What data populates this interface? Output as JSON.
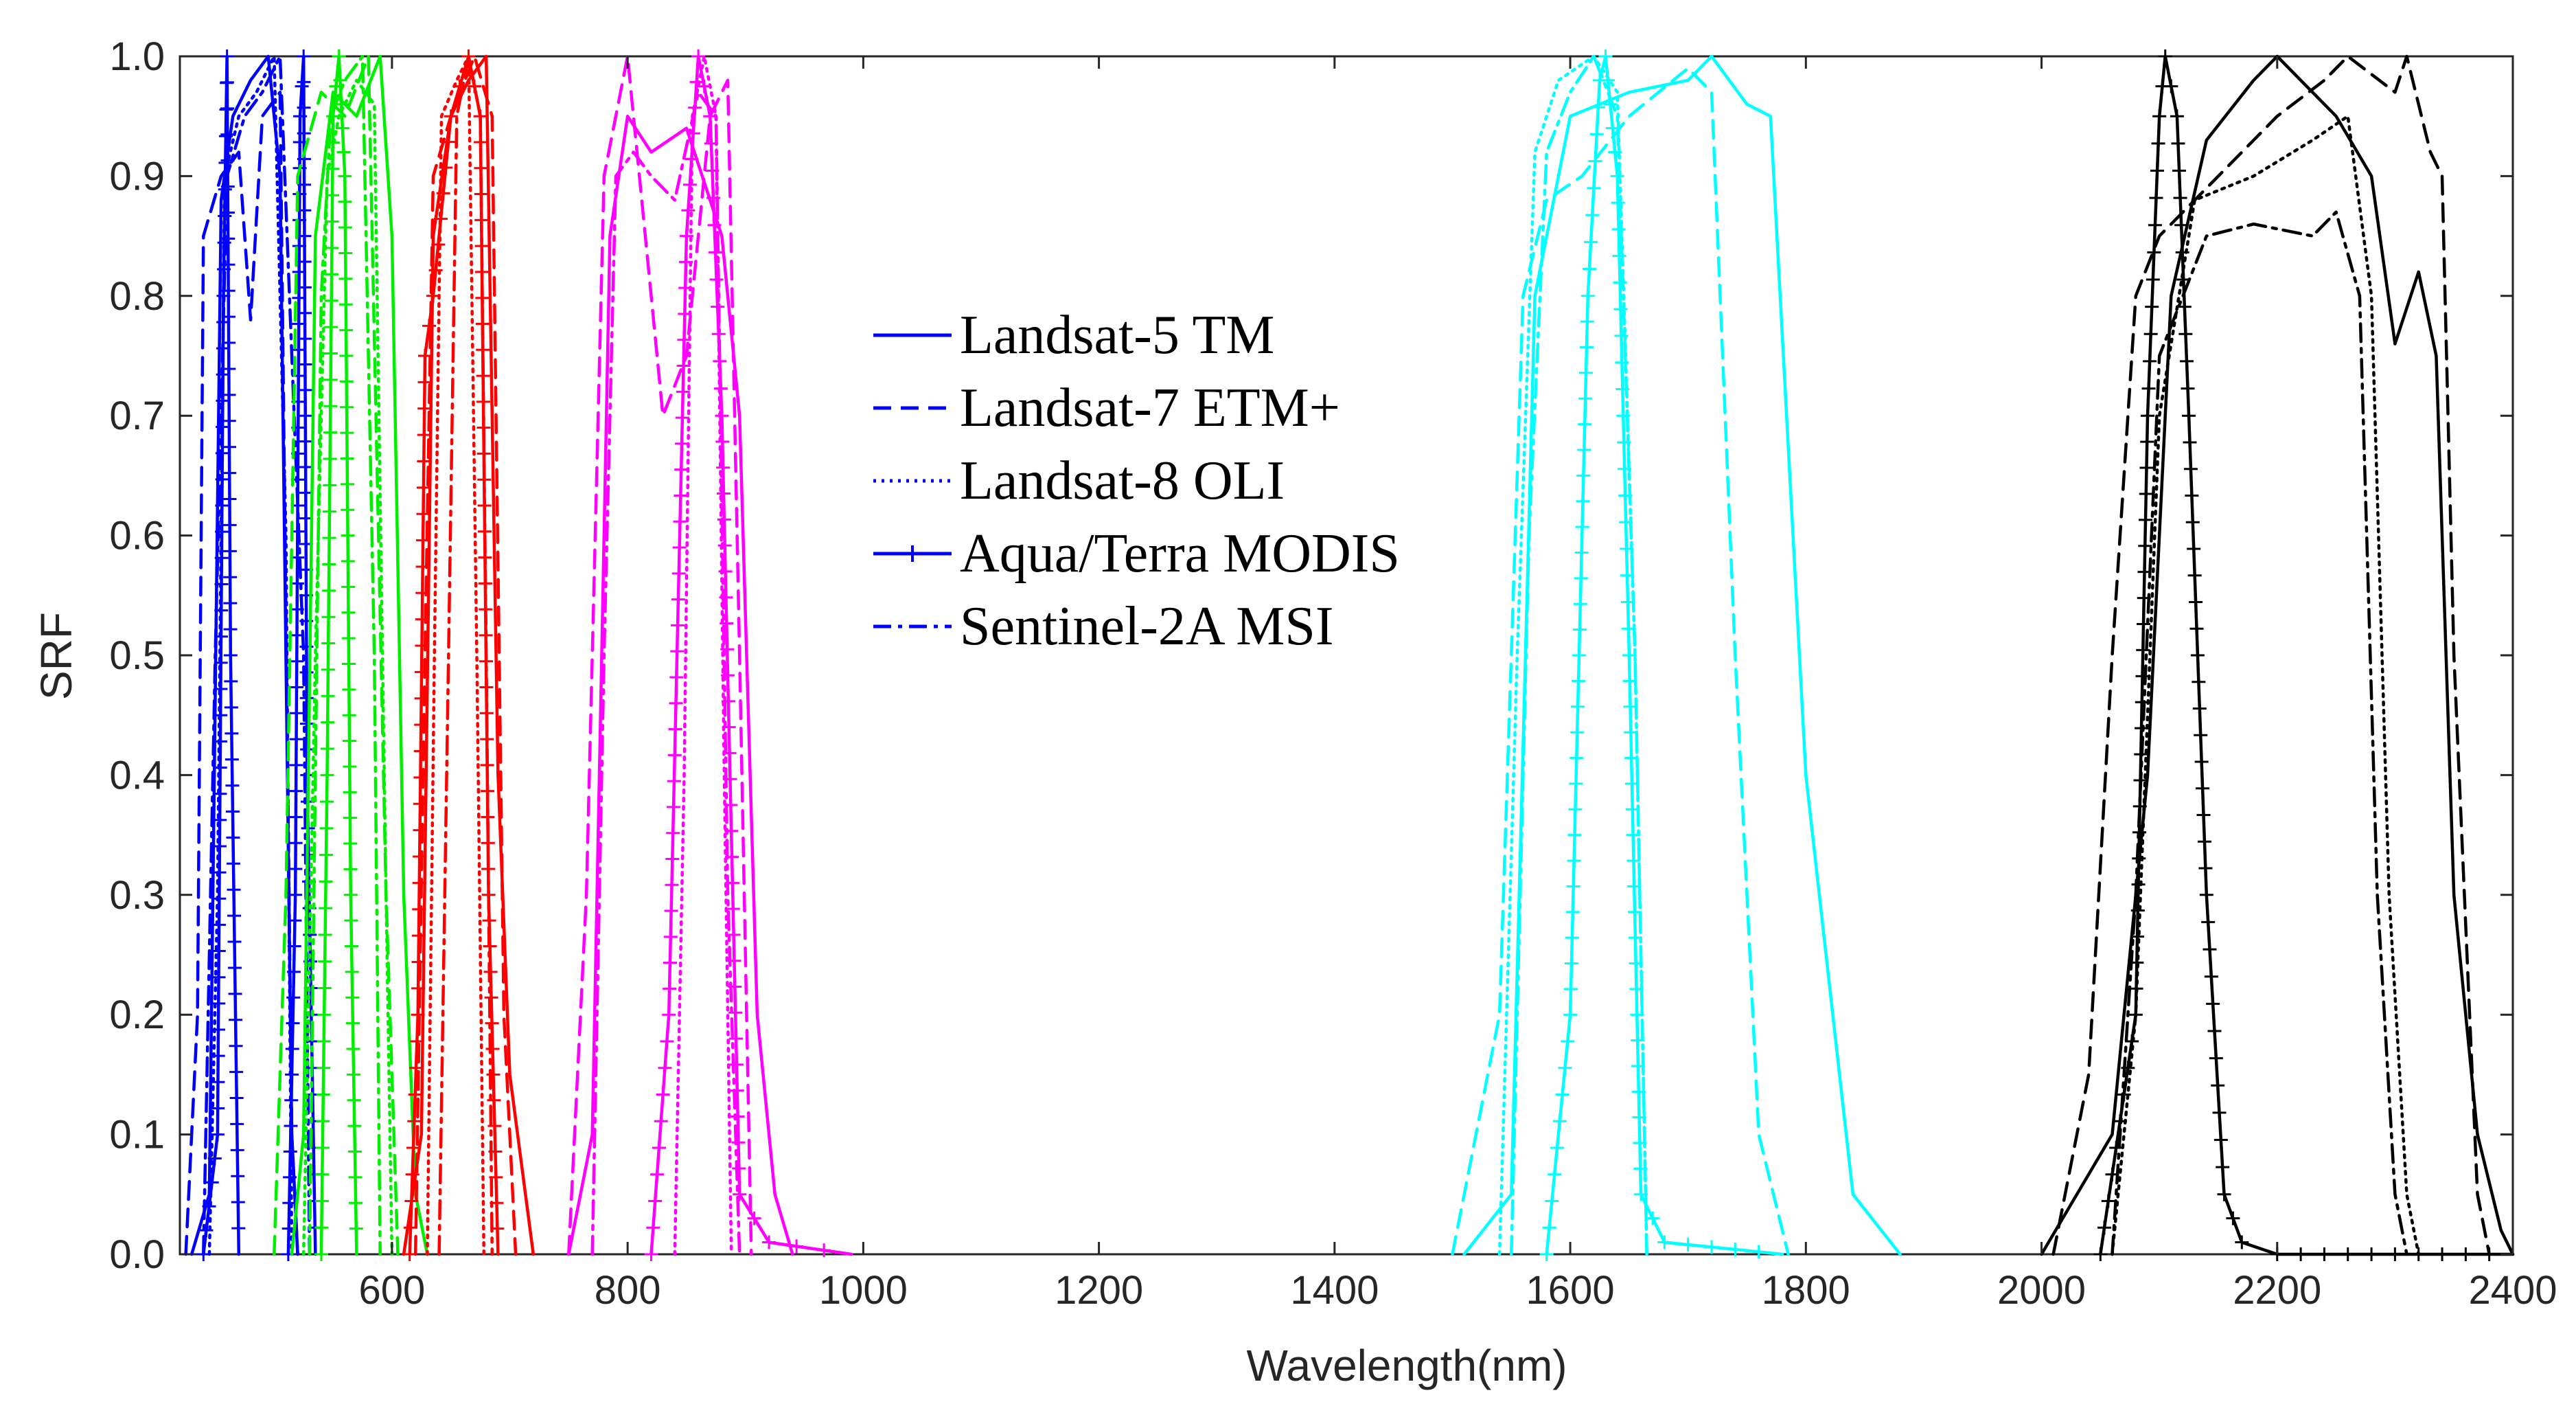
{
  "chart_data": {
    "type": "line",
    "title": "",
    "xlabel": "Wavelength(nm)",
    "ylabel": "SRF",
    "xlim": [
      420,
      2400
    ],
    "ylim": [
      0,
      1.0
    ],
    "xticks": [
      600,
      800,
      1000,
      1200,
      1400,
      1600,
      1800,
      2000,
      2200,
      2400
    ],
    "xtick_labels": [
      "600",
      "800",
      "1000",
      "1200",
      "1400",
      "1600",
      "1800",
      "2000",
      "2200",
      "2400"
    ],
    "yticks": [
      0,
      0.1,
      0.2,
      0.3,
      0.4,
      0.5,
      0.6,
      0.7,
      0.8,
      0.9,
      1.0
    ],
    "ytick_labels": [
      "0.0",
      "0.1",
      "0.2",
      "0.3",
      "0.4",
      "0.5",
      "0.6",
      "0.7",
      "0.8",
      "0.9",
      "1.0"
    ],
    "grid": false,
    "legend_position": "upper-center",
    "legend": [
      {
        "label": "Landsat-5 TM",
        "style": "solid",
        "color": "#0000ff"
      },
      {
        "label": "Landsat-7 ETM+",
        "style": "dashed",
        "color": "#0000ff"
      },
      {
        "label": "Landsat-8 OLI",
        "style": "dotted",
        "color": "#0000ff"
      },
      {
        "label": "Aqua/Terra MODIS",
        "style": "solid-plus",
        "color": "#0000ff"
      },
      {
        "label": "Sentinel-2A MSI",
        "style": "dashdot",
        "color": "#0000ff"
      }
    ],
    "band_colors": {
      "blue": "#0000ff",
      "green": "#00ee00",
      "red": "#ff0000",
      "nir": "#ff00ff",
      "swir1": "#00ffff",
      "swir2": "#000000"
    },
    "series": [
      {
        "name": "Landsat-5 TM blue",
        "sensor": "Landsat-5 TM",
        "band": "blue",
        "style": "solid",
        "x": [
          430,
          445,
          455,
          465,
          480,
          495,
          505,
          515,
          520
        ],
        "y": [
          0,
          0.05,
          0.88,
          0.95,
          0.98,
          1.0,
          0.9,
          0.1,
          0
        ]
      },
      {
        "name": "Landsat-7 ETM+ blue",
        "sensor": "Landsat-7 ETM+",
        "band": "blue",
        "style": "dashed",
        "x": [
          425,
          435,
          440,
          455,
          470,
          480,
          490,
          505,
          515,
          520
        ],
        "y": [
          0,
          0.2,
          0.85,
          0.9,
          0.92,
          0.78,
          0.95,
          0.97,
          0.1,
          0
        ]
      },
      {
        "name": "Landsat-8 OLI blue",
        "sensor": "Landsat-8 OLI",
        "band": "blue",
        "style": "dotted",
        "x": [
          445,
          452,
          458,
          470,
          485,
          500,
          510,
          515
        ],
        "y": [
          0,
          0.3,
          0.9,
          0.95,
          0.97,
          1.0,
          0.6,
          0
        ]
      },
      {
        "name": "MODIS blue 1",
        "sensor": "Aqua/Terra MODIS",
        "band": "blue",
        "style": "solid-plus",
        "x": [
          440,
          452,
          457,
          460,
          463,
          470
        ],
        "y": [
          0,
          0.1,
          0.8,
          1.0,
          0.5,
          0
        ]
      },
      {
        "name": "MODIS blue 2",
        "sensor": "Aqua/Terra MODIS",
        "band": "blue",
        "style": "solid-plus",
        "x": [
          512,
          518,
          522,
          525,
          528,
          535
        ],
        "y": [
          0,
          0.3,
          0.95,
          1.0,
          0.4,
          0
        ]
      },
      {
        "name": "Sentinel-2A MSI blue",
        "sensor": "Sentinel-2A MSI",
        "band": "blue",
        "style": "dashdot",
        "x": [
          440,
          450,
          460,
          475,
          490,
          505,
          525,
          530
        ],
        "y": [
          0,
          0.5,
          0.9,
          0.95,
          0.97,
          1.0,
          0.5,
          0
        ]
      },
      {
        "name": "Landsat-5 TM green",
        "sensor": "Landsat-5 TM",
        "band": "green",
        "style": "solid",
        "x": [
          515,
          525,
          535,
          550,
          570,
          590,
          600,
          610,
          620,
          630
        ],
        "y": [
          0,
          0.1,
          0.85,
          0.97,
          0.95,
          1.0,
          0.85,
          0.3,
          0.05,
          0
        ]
      },
      {
        "name": "Landsat-7 ETM+ green",
        "sensor": "Landsat-7 ETM+",
        "band": "green",
        "style": "dashed",
        "x": [
          500,
          510,
          520,
          540,
          560,
          580,
          595,
          605
        ],
        "y": [
          0,
          0.3,
          0.9,
          0.97,
          0.95,
          1.0,
          0.3,
          0
        ]
      },
      {
        "name": "Landsat-8 OLI green",
        "sensor": "Landsat-8 OLI",
        "band": "green",
        "style": "dotted",
        "x": [
          525,
          535,
          545,
          555,
          570,
          585,
          595,
          600
        ],
        "y": [
          0,
          0.5,
          0.9,
          0.95,
          0.98,
          0.96,
          0.3,
          0
        ]
      },
      {
        "name": "MODIS green",
        "sensor": "Aqua/Terra MODIS",
        "band": "green",
        "style": "solid-plus",
        "x": [
          540,
          545,
          550,
          555,
          560,
          565,
          570
        ],
        "y": [
          0,
          0.4,
          0.95,
          1.0,
          0.9,
          0.3,
          0
        ]
      },
      {
        "name": "Sentinel-2A MSI green",
        "sensor": "Sentinel-2A MSI",
        "band": "green",
        "style": "dashdot",
        "x": [
          530,
          540,
          548,
          560,
          575,
          585,
          590
        ],
        "y": [
          0,
          0.8,
          0.95,
          0.98,
          1.0,
          0.5,
          0
        ]
      },
      {
        "name": "Landsat-5 TM red",
        "sensor": "Landsat-5 TM",
        "band": "red",
        "style": "solid",
        "x": [
          610,
          625,
          635,
          650,
          665,
          680,
          690,
          700,
          720
        ],
        "y": [
          0,
          0.1,
          0.85,
          0.95,
          0.98,
          1.0,
          0.4,
          0.15,
          0
        ]
      },
      {
        "name": "Landsat-7 ETM+ red",
        "sensor": "Landsat-7 ETM+",
        "band": "red",
        "style": "dashed",
        "x": [
          620,
          628,
          635,
          650,
          670,
          685,
          695,
          705
        ],
        "y": [
          0,
          0.5,
          0.9,
          0.95,
          1.0,
          0.95,
          0.2,
          0
        ]
      },
      {
        "name": "Landsat-8 OLI red",
        "sensor": "Landsat-8 OLI",
        "band": "red",
        "style": "dotted",
        "x": [
          630,
          636,
          642,
          655,
          665,
          672,
          678
        ],
        "y": [
          0,
          0.5,
          0.95,
          0.98,
          1.0,
          0.5,
          0
        ]
      },
      {
        "name": "MODIS red",
        "sensor": "Aqua/Terra MODIS",
        "band": "red",
        "style": "solid-plus",
        "x": [
          615,
          622,
          628,
          635,
          650,
          665,
          675,
          682,
          690
        ],
        "y": [
          0,
          0.2,
          0.75,
          0.8,
          0.95,
          1.0,
          0.95,
          0.3,
          0
        ]
      },
      {
        "name": "Sentinel-2A MSI red",
        "sensor": "Sentinel-2A MSI",
        "band": "red",
        "style": "dashdot",
        "x": [
          640,
          648,
          655,
          665,
          675,
          680,
          685
        ],
        "y": [
          0,
          0.5,
          0.95,
          1.0,
          0.95,
          0.5,
          0
        ]
      },
      {
        "name": "Landsat-5 TM nir",
        "sensor": "Landsat-5 TM",
        "band": "nir",
        "style": "solid",
        "x": [
          750,
          770,
          785,
          800,
          820,
          850,
          880,
          895,
          910,
          925,
          940
        ],
        "y": [
          0,
          0.1,
          0.85,
          0.95,
          0.92,
          0.94,
          0.85,
          0.7,
          0.2,
          0.05,
          0
        ]
      },
      {
        "name": "Landsat-7 ETM+ nir",
        "sensor": "Landsat-7 ETM+",
        "band": "nir",
        "style": "dashed",
        "x": [
          750,
          765,
          780,
          800,
          815,
          830,
          850,
          870,
          885,
          895,
          905
        ],
        "y": [
          0,
          0.3,
          0.9,
          1.0,
          0.85,
          0.7,
          0.75,
          0.95,
          0.98,
          0.5,
          0
        ]
      },
      {
        "name": "Landsat-8 OLI nir",
        "sensor": "Landsat-8 OLI",
        "band": "nir",
        "style": "dotted",
        "x": [
          840,
          848,
          855,
          865,
          875,
          882,
          888
        ],
        "y": [
          0,
          0.4,
          0.95,
          1.0,
          0.95,
          0.4,
          0
        ]
      },
      {
        "name": "MODIS nir",
        "sensor": "Aqua/Terra MODIS",
        "band": "nir",
        "style": "solid-plus",
        "x": [
          820,
          835,
          850,
          860,
          870,
          880,
          895,
          920,
          990
        ],
        "y": [
          0,
          0.2,
          0.85,
          1.0,
          0.95,
          0.7,
          0.05,
          0.01,
          0
        ]
      },
      {
        "name": "Sentinel-2A MSI nir",
        "sensor": "Sentinel-2A MSI",
        "band": "nir",
        "style": "dashdot",
        "x": [
          770,
          780,
          790,
          805,
          820,
          840,
          860,
          875,
          885,
          895
        ],
        "y": [
          0,
          0.5,
          0.9,
          0.92,
          0.9,
          0.88,
          0.97,
          0.95,
          0.3,
          0
        ]
      },
      {
        "name": "Landsat-5 TM swir1",
        "sensor": "Landsat-5 TM",
        "band": "swir1",
        "style": "solid",
        "x": [
          1510,
          1550,
          1570,
          1600,
          1650,
          1700,
          1720,
          1750,
          1770,
          1800,
          1840,
          1880
        ],
        "y": [
          0,
          0.05,
          0.8,
          0.95,
          0.97,
          0.98,
          1.0,
          0.96,
          0.95,
          0.4,
          0.05,
          0
        ]
      },
      {
        "name": "Landsat-7 ETM+ swir1",
        "sensor": "Landsat-7 ETM+",
        "band": "swir1",
        "style": "dashed",
        "x": [
          1500,
          1540,
          1560,
          1580,
          1610,
          1650,
          1700,
          1720,
          1740,
          1760,
          1785
        ],
        "y": [
          0,
          0.2,
          0.8,
          0.88,
          0.9,
          0.95,
          0.99,
          0.97,
          0.5,
          0.1,
          0
        ]
      },
      {
        "name": "Landsat-8 OLI swir1",
        "sensor": "Landsat-8 OLI",
        "band": "swir1",
        "style": "dotted",
        "x": [
          1540,
          1555,
          1570,
          1590,
          1620,
          1640,
          1655,
          1665
        ],
        "y": [
          0,
          0.5,
          0.92,
          0.98,
          1.0,
          0.97,
          0.5,
          0
        ]
      },
      {
        "name": "MODIS swir1",
        "sensor": "Aqua/Terra MODIS",
        "band": "swir1",
        "style": "solid-plus",
        "x": [
          1580,
          1600,
          1615,
          1625,
          1630,
          1640,
          1650,
          1660,
          1680,
          1780
        ],
        "y": [
          0,
          0.2,
          0.8,
          0.98,
          1.0,
          0.9,
          0.5,
          0.05,
          0.01,
          0
        ]
      },
      {
        "name": "Sentinel-2A MSI swir1",
        "sensor": "Sentinel-2A MSI",
        "band": "swir1",
        "style": "dashdot",
        "x": [
          1550,
          1565,
          1580,
          1600,
          1620,
          1640,
          1655,
          1665
        ],
        "y": [
          0,
          0.6,
          0.92,
          0.97,
          1.0,
          0.95,
          0.5,
          0
        ]
      },
      {
        "name": "Landsat-5 TM swir2",
        "sensor": "Landsat-5 TM",
        "band": "swir2",
        "style": "solid",
        "x": [
          2000,
          2060,
          2090,
          2110,
          2140,
          2180,
          2200,
          2220,
          2250,
          2280,
          2300,
          2320,
          2335,
          2350,
          2370,
          2390,
          2400
        ],
        "y": [
          0,
          0.1,
          0.4,
          0.8,
          0.93,
          0.98,
          1.0,
          0.98,
          0.95,
          0.9,
          0.76,
          0.82,
          0.75,
          0.3,
          0.1,
          0.02,
          0
        ]
      },
      {
        "name": "Landsat-7 ETM+ swir2",
        "sensor": "Landsat-7 ETM+",
        "band": "swir2",
        "style": "dashed",
        "x": [
          2010,
          2040,
          2060,
          2080,
          2100,
          2150,
          2200,
          2240,
          2260,
          2300,
          2310,
          2330,
          2340,
          2350,
          2370,
          2380
        ],
        "y": [
          0,
          0.15,
          0.5,
          0.8,
          0.85,
          0.9,
          0.95,
          0.98,
          1.0,
          0.97,
          1.0,
          0.92,
          0.9,
          0.5,
          0.05,
          0
        ]
      },
      {
        "name": "Landsat-8 OLI swir2",
        "sensor": "Landsat-8 OLI",
        "band": "swir2",
        "style": "dotted",
        "x": [
          2060,
          2080,
          2100,
          2130,
          2180,
          2230,
          2260,
          2280,
          2295,
          2310,
          2320
        ],
        "y": [
          0,
          0.2,
          0.7,
          0.88,
          0.9,
          0.93,
          0.95,
          0.8,
          0.3,
          0.05,
          0
        ]
      },
      {
        "name": "MODIS swir2",
        "sensor": "Aqua/Terra MODIS",
        "band": "swir2",
        "style": "solid-plus",
        "x": [
          2050,
          2080,
          2090,
          2100,
          2105,
          2115,
          2125,
          2140,
          2155,
          2170,
          2200,
          2300,
          2400
        ],
        "y": [
          0,
          0.2,
          0.7,
          0.95,
          1.0,
          0.95,
          0.7,
          0.3,
          0.05,
          0.01,
          0,
          0,
          0
        ]
      },
      {
        "name": "Sentinel-2A MSI swir2",
        "sensor": "Sentinel-2A MSI",
        "band": "swir2",
        "style": "dashdot",
        "x": [
          2060,
          2080,
          2100,
          2140,
          2180,
          2230,
          2250,
          2270,
          2285,
          2300,
          2310
        ],
        "y": [
          0,
          0.3,
          0.75,
          0.85,
          0.86,
          0.85,
          0.87,
          0.8,
          0.3,
          0.05,
          0
        ]
      }
    ]
  }
}
